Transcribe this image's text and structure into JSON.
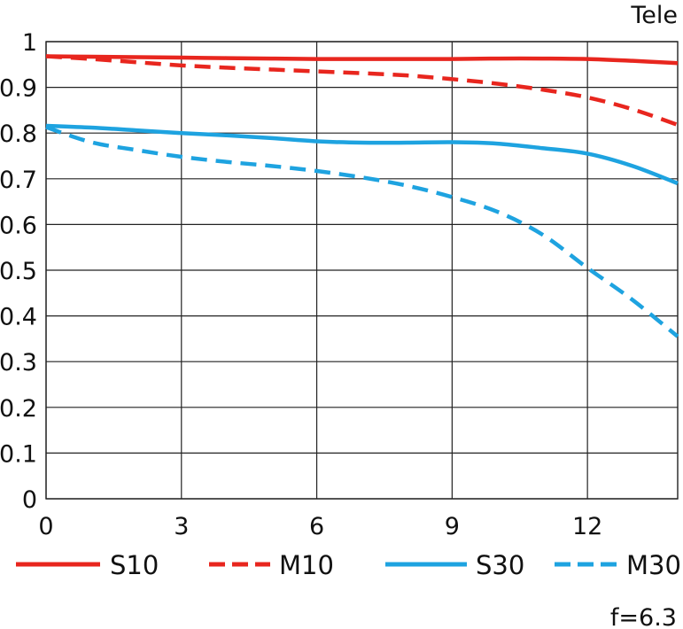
{
  "chart_data": {
    "type": "line",
    "title": "Tele",
    "note": "f=6.3",
    "xlim": [
      0,
      14
    ],
    "ylim": [
      0,
      1
    ],
    "x_ticks": [
      "0",
      "3",
      "6",
      "9",
      "12"
    ],
    "y_ticks": [
      "0",
      "0.1",
      "0.2",
      "0.3",
      "0.4",
      "0.5",
      "0.6",
      "0.7",
      "0.8",
      "0.9",
      "1"
    ],
    "grid": true,
    "legend_position": "bottom",
    "series": [
      {
        "name": "S10",
        "color": "#e8261e",
        "dashed": false,
        "x": [
          0,
          1,
          2,
          3,
          4,
          5,
          6,
          7,
          8,
          9,
          10,
          11,
          12,
          13,
          14
        ],
        "y": [
          0.968,
          0.967,
          0.966,
          0.965,
          0.964,
          0.963,
          0.962,
          0.962,
          0.962,
          0.962,
          0.963,
          0.963,
          0.962,
          0.958,
          0.953
        ]
      },
      {
        "name": "M10",
        "color": "#e8261e",
        "dashed": true,
        "x": [
          0,
          1,
          2,
          3,
          4,
          5,
          6,
          7,
          8,
          9,
          10,
          11,
          12,
          13,
          14
        ],
        "y": [
          0.968,
          0.962,
          0.955,
          0.948,
          0.943,
          0.939,
          0.935,
          0.931,
          0.926,
          0.918,
          0.908,
          0.895,
          0.878,
          0.852,
          0.818
        ]
      },
      {
        "name": "S30",
        "color": "#1ea3e0",
        "dashed": false,
        "x": [
          0,
          1,
          2,
          3,
          4,
          5,
          6,
          7,
          8,
          9,
          10,
          11,
          12,
          13,
          14
        ],
        "y": [
          0.816,
          0.812,
          0.806,
          0.8,
          0.795,
          0.789,
          0.782,
          0.779,
          0.779,
          0.78,
          0.777,
          0.767,
          0.755,
          0.728,
          0.69
        ]
      },
      {
        "name": "M30",
        "color": "#1ea3e0",
        "dashed": true,
        "x": [
          0,
          1,
          2,
          3,
          4,
          5,
          6,
          7,
          8,
          9,
          10,
          11,
          12,
          13,
          14
        ],
        "y": [
          0.813,
          0.78,
          0.763,
          0.748,
          0.737,
          0.728,
          0.717,
          0.703,
          0.685,
          0.66,
          0.628,
          0.578,
          0.505,
          0.435,
          0.355
        ]
      }
    ]
  }
}
